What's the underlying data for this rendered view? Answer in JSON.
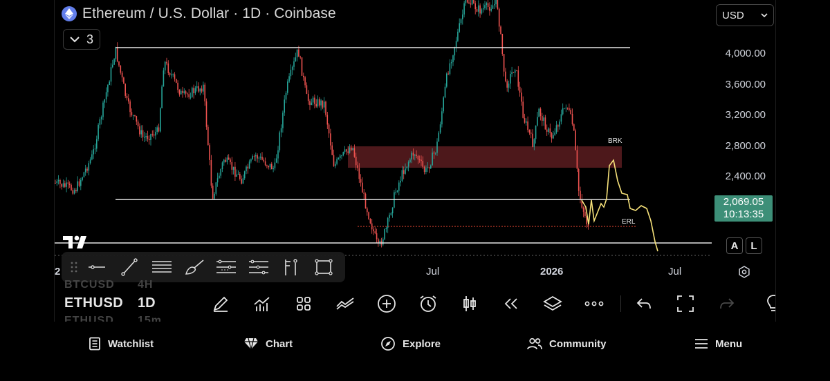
{
  "header": {
    "title": "Ethereum / U.S. Dollar · 1D · Coinbase",
    "indicator_count": "3",
    "currency": "USD"
  },
  "price_axis": {
    "ticks": [
      "4,000.00",
      "3,600.00",
      "3,200.00",
      "2,800.00",
      "2,400.00"
    ],
    "current_price": "2,069.05",
    "countdown": "10:13:35"
  },
  "time_axis": {
    "labels": [
      "Jul",
      "2026",
      "Jul"
    ],
    "cut_label": "2"
  },
  "annotations": {
    "brk": "BRK",
    "erl": "ERL"
  },
  "scale_buttons": {
    "auto": "A",
    "log": "L"
  },
  "symbol": {
    "ticker": "ETHUSD",
    "interval": "1D",
    "ghost_above": "BTCUSD",
    "ghost_above_interval": "4H",
    "ghost_below": "ETHUSD",
    "ghost_below_interval": "15m"
  },
  "colors": {
    "up": "#26a69a",
    "down": "#ef5350",
    "zone": "#5a1c20",
    "projection": "#f7e27a",
    "price_tag": "#3d8f78"
  },
  "drawing_tools": [
    {
      "name": "horizontal-line-tool-icon"
    },
    {
      "name": "trend-line-tool-icon"
    },
    {
      "name": "parallel-channel-tool-icon"
    },
    {
      "name": "brush-tool-icon"
    },
    {
      "name": "fib-retracement-tool-icon"
    },
    {
      "name": "pitchfork-tool-icon"
    },
    {
      "name": "long-position-tool-icon"
    },
    {
      "name": "rectangle-tool-icon"
    }
  ],
  "nav": {
    "watchlist": "Watchlist",
    "chart": "Chart",
    "explore": "Explore",
    "community": "Community",
    "menu": "Menu"
  }
}
